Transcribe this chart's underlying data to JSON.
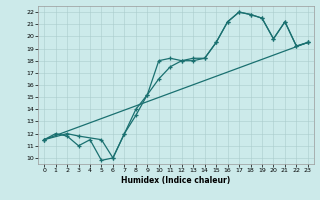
{
  "xlabel": "Humidex (Indice chaleur)",
  "bg_color": "#cceaea",
  "grid_color": "#aacccc",
  "line_color": "#1a7070",
  "xlim": [
    -0.5,
    23.5
  ],
  "ylim": [
    9.5,
    22.5
  ],
  "xticks": [
    0,
    1,
    2,
    3,
    4,
    5,
    6,
    7,
    8,
    9,
    10,
    11,
    12,
    13,
    14,
    15,
    16,
    17,
    18,
    19,
    20,
    21,
    22,
    23
  ],
  "yticks": [
    10,
    11,
    12,
    13,
    14,
    15,
    16,
    17,
    18,
    19,
    20,
    21,
    22
  ],
  "line1_x": [
    0,
    1,
    2,
    3,
    4,
    5,
    6,
    7,
    8,
    9,
    10,
    11,
    12,
    13,
    14,
    15,
    16,
    17,
    18,
    19,
    20,
    21,
    22,
    23
  ],
  "line1_y": [
    11.5,
    12.0,
    11.8,
    11.0,
    11.5,
    9.8,
    10.0,
    12.0,
    14.0,
    15.2,
    18.0,
    18.2,
    18.0,
    18.2,
    18.2,
    19.5,
    21.2,
    22.0,
    21.8,
    21.5,
    19.8,
    21.2,
    19.2,
    19.5
  ],
  "line2_x": [
    0,
    23
  ],
  "line2_y": [
    11.5,
    19.5
  ],
  "line3_x": [
    0,
    2,
    3,
    5,
    6,
    7,
    8,
    9,
    10,
    11,
    12,
    13,
    14,
    15,
    16,
    17,
    18,
    19,
    20,
    21,
    22,
    23
  ],
  "line3_y": [
    11.5,
    12.0,
    11.8,
    11.5,
    10.0,
    12.0,
    13.5,
    15.2,
    16.5,
    17.5,
    18.0,
    18.0,
    18.2,
    19.5,
    21.2,
    22.0,
    21.8,
    21.5,
    19.8,
    21.2,
    19.2,
    19.5
  ]
}
